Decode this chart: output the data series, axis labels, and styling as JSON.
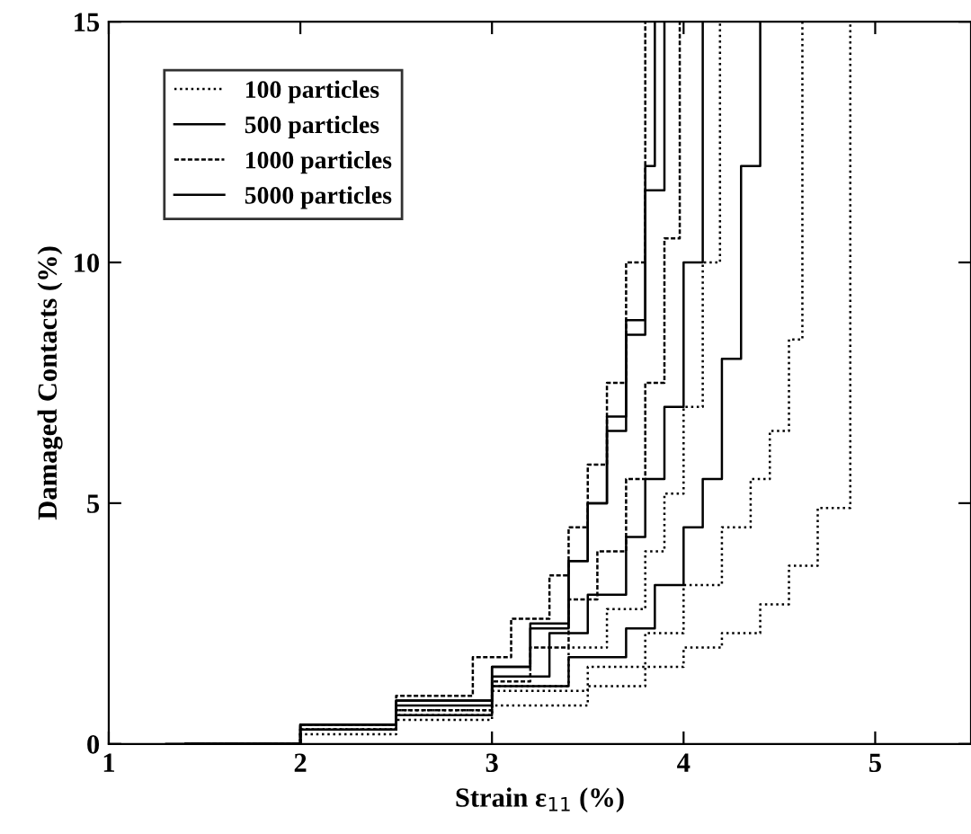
{
  "chart_data": {
    "type": "step",
    "xlabel": "Strain ε$_{11}$ (%)",
    "ylabel": "Damaged Contacts (%)",
    "xlim": [
      1,
      5.5
    ],
    "xticks": [
      1,
      2,
      3,
      4,
      5
    ],
    "ylim": [
      0,
      15
    ],
    "yticks": [
      0,
      5,
      10,
      15
    ],
    "grid": false,
    "legend": "top left",
    "series": [
      {
        "name": "100 particles",
        "color": "#000000",
        "line_style": "dotted",
        "x": [
          1.4,
          2.0,
          2.5,
          3.0,
          3.5,
          3.8,
          4.0,
          4.2,
          4.4,
          4.55,
          4.7,
          4.87,
          4.87
        ],
        "values": [
          0,
          0.2,
          0.5,
          0.8,
          1.2,
          1.6,
          2.0,
          2.3,
          2.9,
          3.7,
          4.9,
          4.9,
          15
        ]
      },
      {
        "color": "#000000",
        "line_style": "dotted",
        "x": [
          1.4,
          2.0,
          2.5,
          3.0,
          3.5,
          3.8,
          4.0,
          4.2,
          4.35,
          4.45,
          4.55,
          4.62,
          4.62
        ],
        "values": [
          0,
          0.3,
          0.7,
          1.1,
          1.6,
          2.3,
          3.3,
          4.5,
          5.5,
          6.5,
          8.4,
          8.4,
          15
        ]
      },
      {
        "color": "#000000",
        "line_style": "dotted",
        "x": [
          1.4,
          2.0,
          2.5,
          3.0,
          3.4,
          3.6,
          3.8,
          3.9,
          4.0,
          4.1,
          4.19
        ],
        "values": [
          0,
          0.3,
          0.6,
          1.2,
          2.0,
          2.8,
          4.0,
          5.2,
          7.0,
          10.0,
          15
        ]
      },
      {
        "name": "500 particles",
        "color": "#000000",
        "line_style": "solid",
        "x": [
          1.4,
          2.0,
          2.5,
          3.0,
          3.4,
          3.7,
          3.85,
          4.0,
          4.1,
          4.2,
          4.3,
          4.4
        ],
        "values": [
          0,
          0.3,
          0.6,
          1.2,
          1.8,
          2.4,
          3.3,
          4.5,
          5.5,
          8,
          12,
          15
        ]
      },
      {
        "color": "#000000",
        "line_style": "solid",
        "x": [
          1.4,
          2.0,
          2.5,
          3.0,
          3.3,
          3.5,
          3.7,
          3.8,
          3.9,
          4.0,
          4.1
        ],
        "values": [
          0,
          0.4,
          0.8,
          1.4,
          2.3,
          3.1,
          4.3,
          5.5,
          7.0,
          10,
          15
        ]
      },
      {
        "color": "#000000",
        "line_style": "solid",
        "x": [
          1.4,
          2.0,
          2.5,
          3.0,
          3.2,
          3.4,
          3.5,
          3.6,
          3.7,
          3.8,
          3.85
        ],
        "values": [
          0,
          0.4,
          0.9,
          1.6,
          2.5,
          3.8,
          5.0,
          6.5,
          8.5,
          12,
          15
        ]
      },
      {
        "name": "1000 particles",
        "color": "#000000",
        "line_style": "dashed",
        "x": [
          1.4,
          2.0,
          2.5,
          2.9,
          3.1,
          3.3,
          3.4,
          3.5,
          3.6,
          3.7,
          3.8
        ],
        "values": [
          0,
          0.4,
          1.0,
          1.8,
          2.6,
          3.5,
          4.5,
          5.8,
          7.5,
          10,
          15
        ]
      },
      {
        "color": "#000000",
        "line_style": "dashed",
        "x": [
          1.4,
          2.0,
          2.5,
          3.0,
          3.2,
          3.4,
          3.55,
          3.7,
          3.8,
          3.9,
          3.98
        ],
        "values": [
          0,
          0.3,
          0.7,
          1.3,
          2.0,
          3.0,
          4.0,
          5.5,
          7.5,
          10.5,
          15
        ]
      },
      {
        "name": "5000 particles",
        "color": "#000000",
        "line_style": "solid",
        "x": [
          1.3,
          2.0,
          2.5,
          3.0,
          3.2,
          3.4,
          3.5,
          3.6,
          3.7,
          3.8,
          3.9
        ],
        "values": [
          0,
          0.4,
          0.9,
          1.6,
          2.4,
          3.8,
          5.0,
          6.8,
          8.8,
          11.5,
          15
        ]
      }
    ]
  }
}
